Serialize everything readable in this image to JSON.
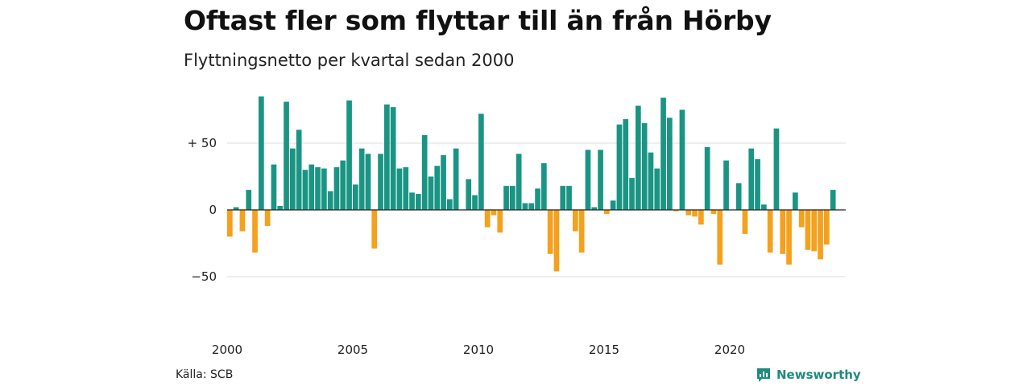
{
  "header": {
    "title": "Oftast fler som flyttar till än från Hörby",
    "subtitle": "Flyttningsnetto per kvartal sedan 2000"
  },
  "footer": {
    "source": "Källa: SCB",
    "brand": "Newsworthy"
  },
  "colors": {
    "positive": "#1a9584",
    "negative": "#f4a11d",
    "grid": "#dddddd",
    "axis": "#222222",
    "brand": "#1d8c7d"
  },
  "chart_data": {
    "type": "bar",
    "title": "Oftast fler som flyttar till än från Hörby",
    "subtitle": "Flyttningsnetto per kvartal sedan 2000",
    "xlabel": "",
    "ylabel": "",
    "x_start": "2000 Q1",
    "ylim": [
      -50,
      85
    ],
    "y_ticks": [
      {
        "value": 50,
        "label": "+ 50"
      },
      {
        "value": 0,
        "label": "0"
      },
      {
        "value": -50,
        "label": "−50"
      }
    ],
    "x_ticks": [
      "2000",
      "2005",
      "2010",
      "2015",
      "2020"
    ],
    "grid": true,
    "values": [
      -20,
      2,
      -16,
      15,
      -32,
      85,
      -12,
      34,
      3,
      81,
      46,
      60,
      30,
      34,
      32,
      31,
      14,
      32,
      37,
      82,
      19,
      46,
      42,
      -29,
      42,
      79,
      77,
      31,
      32,
      13,
      12,
      56,
      25,
      33,
      41,
      8,
      46,
      0,
      23,
      11,
      72,
      -13,
      -4,
      -17,
      18,
      18,
      42,
      5,
      5,
      16,
      35,
      -33,
      -46,
      18,
      18,
      -16,
      -32,
      45,
      2,
      45,
      -3,
      7,
      64,
      68,
      24,
      78,
      65,
      43,
      31,
      84,
      69,
      -1,
      75,
      -4,
      -5,
      -11,
      47,
      -3,
      -41,
      37,
      0,
      20,
      -18,
      46,
      38,
      4,
      -32,
      61,
      -33,
      -41,
      13,
      -13,
      -30,
      -31,
      -37,
      -26,
      15
    ]
  }
}
